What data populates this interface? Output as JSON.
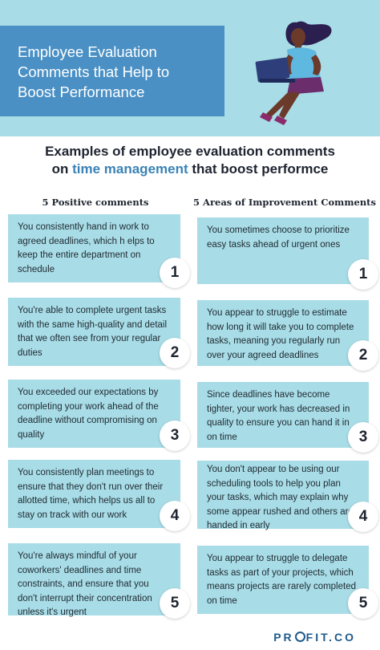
{
  "header": {
    "title": "Employee Evaluation\nComments that Help to\nBoost Performance"
  },
  "subtitle": {
    "line1": "Examples of employee evaluation comments",
    "line2_prefix": "on ",
    "line2_highlight": "time management",
    "line2_suffix": " that boost performce"
  },
  "columns": {
    "positive_title": "5 Positive comments",
    "improvement_title": "5 Areas of Improvement Comments"
  },
  "positive": [
    {
      "number": "1",
      "text": "You consistently hand in work to agreed deadlines, which h elps to keep the entire department on schedule"
    },
    {
      "number": "2",
      "text": "You're able to complete urgent tasks with the same high-quality and detail that we often see from your regular duties"
    },
    {
      "number": "3",
      "text": "You exceeded our expectations by completing your work ahead of the deadline without compromising on quality"
    },
    {
      "number": "4",
      "text": "You consistently plan meetings to ensure that they don't run over their allotted time, which helps us all to stay on track with our work"
    },
    {
      "number": "5",
      "text": "You're always mindful of your coworkers' deadlines and time constraints, and ensure that you don't interrupt their concentration unless it's urgent"
    }
  ],
  "improvement": [
    {
      "number": "1",
      "text": "You sometimes choose to prioritize easy tasks ahead of urgent ones"
    },
    {
      "number": "2",
      "text": "You appear to struggle to estimate how long it will take you to complete tasks, meaning you regularly run over your agreed deadlines"
    },
    {
      "number": "3",
      "text": "Since deadlines have become tighter, your work has decreased in quality to ensure you can hand it in on time"
    },
    {
      "number": "4",
      "text": "You don't appear to be using our scheduling tools to help you plan your tasks, which may explain why some appear rushed and others are handed in early"
    },
    {
      "number": "5",
      "text": "You appear to struggle to delegate tasks as part of your projects, which means projects are rarely completed on time"
    }
  ],
  "brand": {
    "part1": "PR",
    "part2": "FIT.CO"
  },
  "colors": {
    "hero_bg": "#a8dce6",
    "title_box": "#4a90c5",
    "highlight": "#3a82b5",
    "card_bg": "#a8dce6"
  }
}
